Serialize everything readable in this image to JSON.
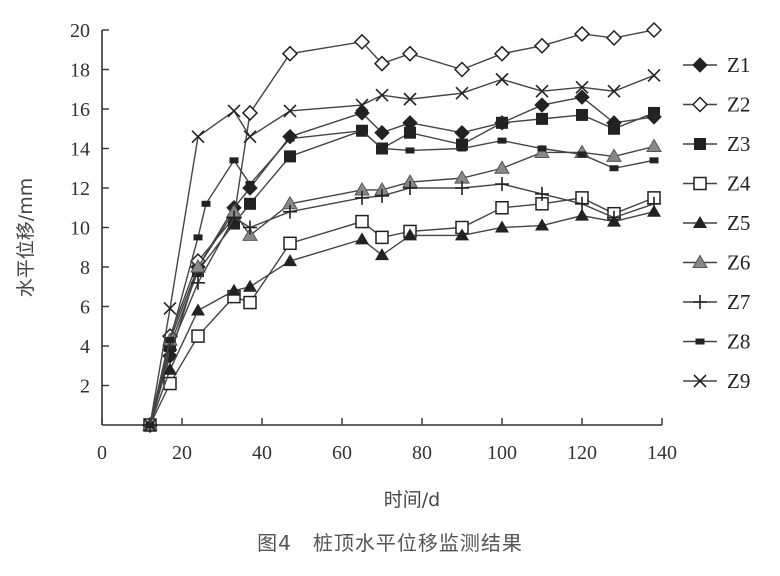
{
  "caption": "图4　桩顶水平位移监测结果",
  "chart_data": {
    "type": "line",
    "title": "",
    "xlabel": "时间/d",
    "ylabel": "水平位移/mm",
    "xlim": [
      0,
      140
    ],
    "ylim": [
      0,
      20
    ],
    "xticks": [
      0,
      20,
      40,
      60,
      80,
      100,
      120,
      140
    ],
    "yticks": [
      2,
      4,
      6,
      8,
      10,
      12,
      14,
      16,
      18,
      20
    ],
    "grid": false,
    "legend": "right",
    "series": [
      {
        "name": "Z1",
        "marker": "diamond-filled",
        "x": [
          12,
          17,
          24,
          33,
          37,
          47,
          65,
          70,
          77,
          90,
          100,
          110,
          120,
          128,
          138
        ],
        "y": [
          0,
          3.5,
          8.0,
          11.0,
          12.0,
          14.6,
          15.8,
          14.8,
          15.3,
          14.8,
          15.3,
          16.2,
          16.6,
          15.3,
          15.6
        ]
      },
      {
        "name": "Z2",
        "marker": "diamond-open",
        "x": [
          12,
          17,
          24,
          33,
          37,
          47,
          65,
          70,
          77,
          90,
          100,
          110,
          120,
          128,
          138
        ],
        "y": [
          0,
          4.5,
          8.3,
          10.5,
          15.8,
          18.8,
          19.4,
          18.3,
          18.8,
          18.0,
          18.8,
          19.2,
          19.8,
          19.6,
          20.0
        ]
      },
      {
        "name": "Z3",
        "marker": "square-filled",
        "x": [
          12,
          17,
          24,
          33,
          37,
          47,
          65,
          70,
          77,
          90,
          100,
          110,
          120,
          128,
          138
        ],
        "y": [
          0,
          4.0,
          7.8,
          10.2,
          11.2,
          13.6,
          14.9,
          14.0,
          14.8,
          14.2,
          15.3,
          15.5,
          15.7,
          15.0,
          15.8
        ]
      },
      {
        "name": "Z4",
        "marker": "square-open",
        "x": [
          12,
          17,
          24,
          33,
          37,
          47,
          65,
          70,
          77,
          90,
          100,
          110,
          120,
          128,
          138
        ],
        "y": [
          0,
          2.1,
          4.5,
          6.5,
          6.2,
          9.2,
          10.3,
          9.5,
          9.8,
          10.0,
          11.0,
          11.2,
          11.5,
          10.7,
          11.5
        ]
      },
      {
        "name": "Z5",
        "marker": "triangle-filled",
        "x": [
          12,
          17,
          24,
          33,
          37,
          47,
          65,
          70,
          77,
          90,
          100,
          110,
          120,
          128,
          138
        ],
        "y": [
          0,
          2.8,
          5.8,
          6.8,
          7.0,
          8.3,
          9.4,
          8.6,
          9.6,
          9.6,
          10.0,
          10.1,
          10.6,
          10.3,
          10.8
        ]
      },
      {
        "name": "Z6",
        "marker": "triangle-gray",
        "x": [
          12,
          17,
          24,
          33,
          37,
          47,
          65,
          70,
          77,
          90,
          100,
          110,
          120,
          128,
          138
        ],
        "y": [
          0,
          4.3,
          8.0,
          10.8,
          9.6,
          11.2,
          11.9,
          11.9,
          12.3,
          12.5,
          13.0,
          13.8,
          13.8,
          13.6,
          14.1
        ]
      },
      {
        "name": "Z7",
        "marker": "plus",
        "x": [
          12,
          17,
          24,
          33,
          37,
          47,
          65,
          70,
          77,
          90,
          100,
          110,
          120,
          128,
          138
        ],
        "y": [
          0,
          3.8,
          7.2,
          10.5,
          10.0,
          10.8,
          11.5,
          11.6,
          12.0,
          12.0,
          12.2,
          11.7,
          11.2,
          10.5,
          11.2
        ]
      },
      {
        "name": "Z8",
        "marker": "square-small",
        "x": [
          12,
          17,
          24,
          26,
          33,
          37,
          47,
          65,
          70,
          77,
          90,
          100,
          110,
          120,
          128,
          138
        ],
        "y": [
          0,
          4.3,
          9.5,
          11.2,
          13.4,
          12.2,
          14.5,
          14.9,
          14.0,
          13.9,
          14.0,
          14.4,
          14.0,
          13.7,
          13.0,
          13.4
        ]
      },
      {
        "name": "Z9",
        "marker": "x",
        "x": [
          12,
          17,
          24,
          33,
          37,
          47,
          65,
          70,
          77,
          90,
          100,
          110,
          120,
          128,
          138
        ],
        "y": [
          0,
          5.9,
          14.6,
          15.9,
          14.6,
          15.9,
          16.2,
          16.7,
          16.5,
          16.8,
          17.5,
          16.9,
          17.1,
          16.9,
          17.7
        ]
      }
    ]
  }
}
